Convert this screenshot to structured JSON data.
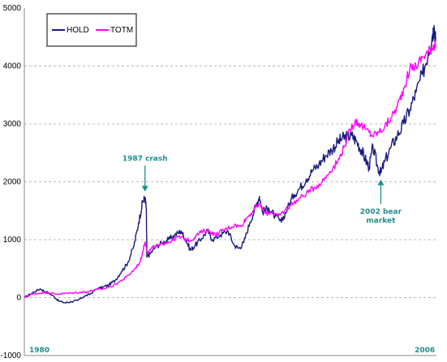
{
  "chart_data": {
    "type": "line",
    "title": "",
    "xlabel": "",
    "ylabel": "",
    "x_range": [
      1980,
      2006.3
    ],
    "ylim": [
      -1000,
      5000
    ],
    "yticks": [
      -1000,
      0,
      1000,
      2000,
      3000,
      4000,
      5000
    ],
    "ytick_labels": [
      "-1000",
      "0",
      "1000",
      "2000",
      "3000",
      "4000",
      "5000"
    ],
    "xtick_labels": [
      {
        "x": 1980,
        "label": "1980"
      },
      {
        "x": 2006,
        "label": "2006"
      }
    ],
    "grid": "horizontal dashed",
    "legend": "top-left",
    "series": [
      {
        "name": "HOLD",
        "color": "#1a1a7e",
        "points": [
          [
            1980.0,
            0
          ],
          [
            1980.5,
            80
          ],
          [
            1981.0,
            150
          ],
          [
            1981.4,
            100
          ],
          [
            1981.8,
            40
          ],
          [
            1982.2,
            -60
          ],
          [
            1982.6,
            -90
          ],
          [
            1983.0,
            -70
          ],
          [
            1983.4,
            -50
          ],
          [
            1983.8,
            20
          ],
          [
            1984.2,
            60
          ],
          [
            1984.6,
            150
          ],
          [
            1985.0,
            180
          ],
          [
            1985.4,
            220
          ],
          [
            1985.8,
            300
          ],
          [
            1986.2,
            450
          ],
          [
            1986.6,
            600
          ],
          [
            1987.0,
            900
          ],
          [
            1987.3,
            1300
          ],
          [
            1987.55,
            1650
          ],
          [
            1987.7,
            1720
          ],
          [
            1987.78,
            1550
          ],
          [
            1987.82,
            700
          ],
          [
            1988.0,
            750
          ],
          [
            1988.4,
            880
          ],
          [
            1988.8,
            950
          ],
          [
            1989.2,
            1000
          ],
          [
            1989.6,
            1080
          ],
          [
            1990.0,
            1150
          ],
          [
            1990.3,
            1000
          ],
          [
            1990.6,
            820
          ],
          [
            1990.9,
            900
          ],
          [
            1991.3,
            1020
          ],
          [
            1991.7,
            1160
          ],
          [
            1992.0,
            1000
          ],
          [
            1992.5,
            1080
          ],
          [
            1993.0,
            1150
          ],
          [
            1993.4,
            900
          ],
          [
            1993.7,
            850
          ],
          [
            1994.0,
            950
          ],
          [
            1994.4,
            1300
          ],
          [
            1994.8,
            1600
          ],
          [
            1995.0,
            1750
          ],
          [
            1995.2,
            1480
          ],
          [
            1995.6,
            1550
          ],
          [
            1996.0,
            1400
          ],
          [
            1996.4,
            1300
          ],
          [
            1996.8,
            1550
          ],
          [
            1997.2,
            1780
          ],
          [
            1997.6,
            1900
          ],
          [
            1998.0,
            2050
          ],
          [
            1998.4,
            2200
          ],
          [
            1998.8,
            2300
          ],
          [
            1999.2,
            2450
          ],
          [
            1999.6,
            2550
          ],
          [
            2000.0,
            2680
          ],
          [
            2000.3,
            2750
          ],
          [
            2000.6,
            2780
          ],
          [
            2000.9,
            2800
          ],
          [
            2001.2,
            2700
          ],
          [
            2001.5,
            2550
          ],
          [
            2001.75,
            2400
          ],
          [
            2002.0,
            2250
          ],
          [
            2002.25,
            2600
          ],
          [
            2002.55,
            2250
          ],
          [
            2002.75,
            2150
          ],
          [
            2003.0,
            2350
          ],
          [
            2003.4,
            2600
          ],
          [
            2003.8,
            2800
          ],
          [
            2004.2,
            3000
          ],
          [
            2004.6,
            3250
          ],
          [
            2005.0,
            3550
          ],
          [
            2005.4,
            3850
          ],
          [
            2005.8,
            4250
          ],
          [
            2006.05,
            4550
          ],
          [
            2006.15,
            4700
          ],
          [
            2006.25,
            4420
          ]
        ]
      },
      {
        "name": "TOTM",
        "color": "#ff00ff",
        "points": [
          [
            1980.0,
            0
          ],
          [
            1980.5,
            60
          ],
          [
            1981.0,
            80
          ],
          [
            1981.5,
            90
          ],
          [
            1982.0,
            60
          ],
          [
            1982.5,
            70
          ],
          [
            1983.0,
            80
          ],
          [
            1983.5,
            90
          ],
          [
            1984.0,
            100
          ],
          [
            1984.5,
            130
          ],
          [
            1985.0,
            150
          ],
          [
            1985.5,
            190
          ],
          [
            1986.0,
            260
          ],
          [
            1986.5,
            350
          ],
          [
            1987.0,
            480
          ],
          [
            1987.4,
            620
          ],
          [
            1987.7,
            960
          ],
          [
            1987.9,
            780
          ],
          [
            1988.2,
            870
          ],
          [
            1988.6,
            900
          ],
          [
            1989.0,
            950
          ],
          [
            1989.4,
            980
          ],
          [
            1989.8,
            1050
          ],
          [
            1990.2,
            1020
          ],
          [
            1990.6,
            980
          ],
          [
            1991.0,
            1080
          ],
          [
            1991.4,
            1150
          ],
          [
            1991.8,
            1150
          ],
          [
            1992.2,
            1080
          ],
          [
            1992.6,
            1150
          ],
          [
            1993.0,
            1200
          ],
          [
            1993.4,
            1250
          ],
          [
            1993.8,
            1230
          ],
          [
            1994.2,
            1380
          ],
          [
            1994.6,
            1500
          ],
          [
            1995.0,
            1620
          ],
          [
            1995.4,
            1450
          ],
          [
            1995.8,
            1480
          ],
          [
            1996.2,
            1400
          ],
          [
            1996.6,
            1500
          ],
          [
            1997.0,
            1600
          ],
          [
            1997.5,
            1700
          ],
          [
            1998.0,
            1800
          ],
          [
            1998.5,
            1900
          ],
          [
            1999.0,
            2000
          ],
          [
            1999.5,
            2180
          ],
          [
            2000.0,
            2350
          ],
          [
            2000.4,
            2600
          ],
          [
            2000.8,
            2900
          ],
          [
            2001.1,
            3050
          ],
          [
            2001.4,
            3000
          ],
          [
            2001.8,
            2900
          ],
          [
            2002.2,
            2800
          ],
          [
            2002.6,
            2850
          ],
          [
            2003.0,
            2950
          ],
          [
            2003.4,
            3100
          ],
          [
            2003.8,
            3300
          ],
          [
            2004.2,
            3600
          ],
          [
            2004.6,
            3950
          ],
          [
            2005.0,
            4000
          ],
          [
            2005.4,
            4150
          ],
          [
            2005.8,
            4250
          ],
          [
            2006.1,
            4350
          ],
          [
            2006.25,
            4380
          ]
        ]
      }
    ],
    "annotations": [
      {
        "text_lines": [
          "1987 crash"
        ],
        "x": 1987.7,
        "y": 1720,
        "position": "above",
        "color": "#1f8d8d"
      },
      {
        "text_lines": [
          "2002 bear",
          "market"
        ],
        "x": 2002.75,
        "y": 2150,
        "position": "below",
        "color": "#1f8d8d"
      }
    ]
  }
}
